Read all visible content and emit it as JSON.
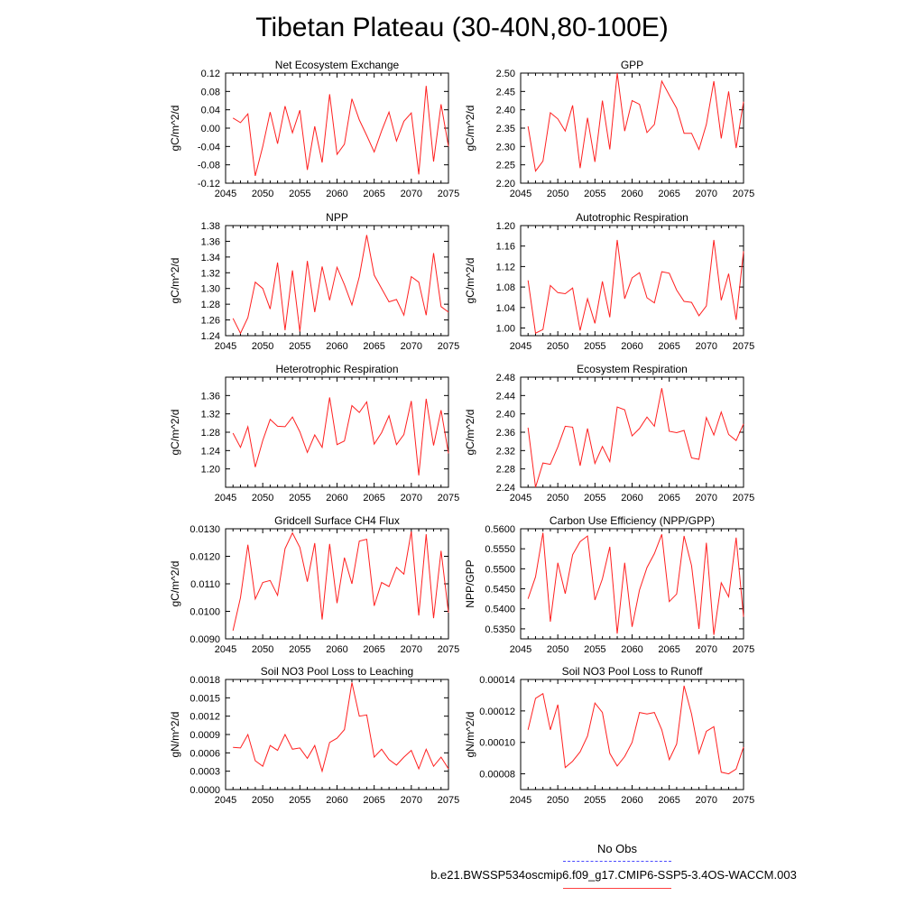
{
  "title": "Tibetan Plateau (30-40N,80-100E)",
  "legend": {
    "obs_label": "No Obs",
    "run_label": "b.e21.BWSSP534oscmip6.f09_g17.CMIP6-SSP5-3.4OS-WACCM.003",
    "obs_color": "#4a4aff",
    "run_color": "#ff2020"
  },
  "chart_data": [
    {
      "type": "line",
      "title": "Net Ecosystem Exchange",
      "ylabel": "gC/m^2/d",
      "xlim": [
        2045,
        2075
      ],
      "xticks": [
        "2045",
        "2050",
        "2055",
        "2060",
        "2065",
        "2070",
        "2075"
      ],
      "ylim": [
        -0.12,
        0.12
      ],
      "yticks": [
        "0.12",
        "0.08",
        "0.04",
        "0.00",
        "-0.04",
        "-0.08",
        "-0.12"
      ],
      "x": [
        2046,
        2047,
        2048,
        2049,
        2050,
        2051,
        2052,
        2053,
        2054,
        2055,
        2056,
        2057,
        2058,
        2059,
        2060,
        2061,
        2062,
        2063,
        2064,
        2065,
        2066,
        2067,
        2068,
        2069,
        2070,
        2071,
        2072,
        2073,
        2074,
        2075
      ],
      "series": [
        {
          "name": "b.e21.BWSSP534oscmip6.f09_g17.CMIP6-SSP5-3.4OS-WACCM.003",
          "values": [
            0.022,
            0.012,
            0.031,
            -0.104,
            -0.04,
            0.035,
            -0.034,
            0.048,
            -0.01,
            0.039,
            -0.091,
            0.004,
            -0.075,
            0.074,
            -0.057,
            -0.035,
            0.064,
            0.018,
            -0.016,
            -0.052,
            -0.006,
            0.035,
            -0.028,
            0.015,
            0.033,
            -0.101,
            0.092,
            -0.073,
            0.052,
            -0.04
          ]
        }
      ]
    },
    {
      "type": "line",
      "title": "GPP",
      "ylabel": "gC/m^2/d",
      "xlim": [
        2045,
        2075
      ],
      "xticks": [
        "2045",
        "2050",
        "2055",
        "2060",
        "2065",
        "2070",
        "2075"
      ],
      "ylim": [
        2.2,
        2.5
      ],
      "yticks": [
        "2.50",
        "2.45",
        "2.40",
        "2.35",
        "2.30",
        "2.25",
        "2.20"
      ],
      "x": [
        2046,
        2047,
        2048,
        2049,
        2050,
        2051,
        2052,
        2053,
        2054,
        2055,
        2056,
        2057,
        2058,
        2059,
        2060,
        2061,
        2062,
        2063,
        2064,
        2065,
        2066,
        2067,
        2068,
        2069,
        2070,
        2071,
        2072,
        2073,
        2074,
        2075
      ],
      "series": [
        {
          "name": "b.e21.BWSSP534oscmip6.f09_g17.CMIP6-SSP5-3.4OS-WACCM.003",
          "values": [
            2.355,
            2.233,
            2.26,
            2.392,
            2.375,
            2.342,
            2.412,
            2.241,
            2.378,
            2.258,
            2.425,
            2.292,
            2.5,
            2.342,
            2.425,
            2.415,
            2.338,
            2.36,
            2.478,
            2.44,
            2.404,
            2.336,
            2.336,
            2.292,
            2.36,
            2.478,
            2.322,
            2.45,
            2.296,
            2.422
          ]
        }
      ]
    },
    {
      "type": "line",
      "title": "NPP",
      "ylabel": "gC/m^2/d",
      "xlim": [
        2045,
        2075
      ],
      "xticks": [
        "2045",
        "2050",
        "2055",
        "2060",
        "2065",
        "2070",
        "2075"
      ],
      "ylim": [
        1.24,
        1.38
      ],
      "yticks": [
        "1.38",
        "1.36",
        "1.34",
        "1.32",
        "1.30",
        "1.28",
        "1.26",
        "1.24"
      ],
      "x": [
        2046,
        2047,
        2048,
        2049,
        2050,
        2051,
        2052,
        2053,
        2054,
        2055,
        2056,
        2057,
        2058,
        2059,
        2060,
        2061,
        2062,
        2063,
        2064,
        2065,
        2066,
        2067,
        2068,
        2069,
        2070,
        2071,
        2072,
        2073,
        2074,
        2075
      ],
      "series": [
        {
          "name": "b.e21.BWSSP534oscmip6.f09_g17.CMIP6-SSP5-3.4OS-WACCM.003",
          "values": [
            1.262,
            1.243,
            1.263,
            1.308,
            1.3,
            1.274,
            1.333,
            1.247,
            1.323,
            1.245,
            1.335,
            1.27,
            1.328,
            1.285,
            1.327,
            1.305,
            1.279,
            1.315,
            1.368,
            1.317,
            1.3,
            1.283,
            1.286,
            1.266,
            1.315,
            1.308,
            1.266,
            1.345,
            1.277,
            1.27
          ]
        }
      ]
    },
    {
      "type": "line",
      "title": "Autotrophic Respiration",
      "ylabel": "gC/m^2/d",
      "xlim": [
        2045,
        2075
      ],
      "xticks": [
        "2045",
        "2050",
        "2055",
        "2060",
        "2065",
        "2070",
        "2075"
      ],
      "ylim": [
        0.985,
        1.2
      ],
      "yticks": [
        "1.20",
        "1.16",
        "1.12",
        "1.08",
        "1.04",
        "1.00"
      ],
      "x": [
        2046,
        2047,
        2048,
        2049,
        2050,
        2051,
        2052,
        2053,
        2054,
        2055,
        2056,
        2057,
        2058,
        2059,
        2060,
        2061,
        2062,
        2063,
        2064,
        2065,
        2066,
        2067,
        2068,
        2069,
        2070,
        2071,
        2072,
        2073,
        2074,
        2075
      ],
      "series": [
        {
          "name": "b.e21.BWSSP534oscmip6.f09_g17.CMIP6-SSP5-3.4OS-WACCM.003",
          "values": [
            1.093,
            0.99,
            0.997,
            1.083,
            1.069,
            1.067,
            1.078,
            0.995,
            1.057,
            1.009,
            1.091,
            1.021,
            1.172,
            1.057,
            1.098,
            1.108,
            1.059,
            1.049,
            1.11,
            1.107,
            1.074,
            1.052,
            1.05,
            1.024,
            1.043,
            1.172,
            1.054,
            1.106,
            1.016,
            1.15
          ]
        }
      ]
    },
    {
      "type": "line",
      "title": "Heterotrophic Respiration",
      "ylabel": "gC/m^2/d",
      "xlim": [
        2045,
        2075
      ],
      "xticks": [
        "2045",
        "2050",
        "2055",
        "2060",
        "2065",
        "2070",
        "2075"
      ],
      "ylim": [
        1.16,
        1.4
      ],
      "yticks": [
        "1.36",
        "1.32",
        "1.28",
        "1.24",
        "1.20"
      ],
      "x": [
        2046,
        2047,
        2048,
        2049,
        2050,
        2051,
        2052,
        2053,
        2054,
        2055,
        2056,
        2057,
        2058,
        2059,
        2060,
        2061,
        2062,
        2063,
        2064,
        2065,
        2066,
        2067,
        2068,
        2069,
        2070,
        2071,
        2072,
        2073,
        2074,
        2075
      ],
      "series": [
        {
          "name": "b.e21.BWSSP534oscmip6.f09_g17.CMIP6-SSP5-3.4OS-WACCM.003",
          "values": [
            1.278,
            1.247,
            1.292,
            1.204,
            1.262,
            1.308,
            1.293,
            1.292,
            1.313,
            1.281,
            1.236,
            1.274,
            1.247,
            1.356,
            1.253,
            1.261,
            1.338,
            1.323,
            1.346,
            1.254,
            1.279,
            1.316,
            1.253,
            1.275,
            1.348,
            1.186,
            1.353,
            1.251,
            1.328,
            1.234
          ]
        }
      ]
    },
    {
      "type": "line",
      "title": "Ecosystem Respiration",
      "ylabel": "gC/m^2/d",
      "xlim": [
        2045,
        2075
      ],
      "xticks": [
        "2045",
        "2050",
        "2055",
        "2060",
        "2065",
        "2070",
        "2075"
      ],
      "ylim": [
        2.24,
        2.48
      ],
      "yticks": [
        "2.48",
        "2.44",
        "2.40",
        "2.36",
        "2.32",
        "2.28",
        "2.24"
      ],
      "x": [
        2046,
        2047,
        2048,
        2049,
        2050,
        2051,
        2052,
        2053,
        2054,
        2055,
        2056,
        2057,
        2058,
        2059,
        2060,
        2061,
        2062,
        2063,
        2064,
        2065,
        2066,
        2067,
        2068,
        2069,
        2070,
        2071,
        2072,
        2073,
        2074,
        2075
      ],
      "series": [
        {
          "name": "b.e21.BWSSP534oscmip6.f09_g17.CMIP6-SSP5-3.4OS-WACCM.003",
          "values": [
            2.37,
            2.24,
            2.293,
            2.29,
            2.328,
            2.373,
            2.371,
            2.287,
            2.368,
            2.292,
            2.329,
            2.296,
            2.415,
            2.409,
            2.352,
            2.368,
            2.393,
            2.373,
            2.456,
            2.362,
            2.359,
            2.364,
            2.304,
            2.301,
            2.392,
            2.354,
            2.404,
            2.355,
            2.342,
            2.378
          ]
        }
      ]
    },
    {
      "type": "line",
      "title": "Gridcell Surface CH4 Flux",
      "ylabel": "gC/m^2/d",
      "xlim": [
        2045,
        2075
      ],
      "xticks": [
        "2045",
        "2050",
        "2055",
        "2060",
        "2065",
        "2070",
        "2075"
      ],
      "ylim": [
        0.009,
        0.013
      ],
      "yticks": [
        "0.0130",
        "0.0120",
        "0.0110",
        "0.0100",
        "0.0090"
      ],
      "x": [
        2046,
        2047,
        2048,
        2049,
        2050,
        2051,
        2052,
        2053,
        2054,
        2055,
        2056,
        2057,
        2058,
        2059,
        2060,
        2061,
        2062,
        2063,
        2064,
        2065,
        2066,
        2067,
        2068,
        2069,
        2070,
        2071,
        2072,
        2073,
        2074,
        2075
      ],
      "series": [
        {
          "name": "b.e21.BWSSP534oscmip6.f09_g17.CMIP6-SSP5-3.4OS-WACCM.003",
          "values": [
            0.0093,
            0.0105,
            0.01242,
            0.01045,
            0.01105,
            0.01112,
            0.01058,
            0.01228,
            0.01285,
            0.01232,
            0.01108,
            0.01248,
            0.0097,
            0.01245,
            0.0103,
            0.01195,
            0.011,
            0.01255,
            0.01262,
            0.0102,
            0.01105,
            0.0109,
            0.0116,
            0.01135,
            0.0129,
            0.00985,
            0.0128,
            0.00975,
            0.0122,
            0.00995
          ]
        }
      ]
    },
    {
      "type": "line",
      "title": "Carbon Use Efficiency (NPP/GPP)",
      "ylabel": "NPP/GPP",
      "xlim": [
        2045,
        2075
      ],
      "xticks": [
        "2045",
        "2050",
        "2055",
        "2060",
        "2065",
        "2070",
        "2075"
      ],
      "ylim": [
        0.5325,
        0.56
      ],
      "yticks": [
        "0.5600",
        "0.5550",
        "0.5500",
        "0.5450",
        "0.5400",
        "0.5350"
      ],
      "x": [
        2046,
        2047,
        2048,
        2049,
        2050,
        2051,
        2052,
        2053,
        2054,
        2055,
        2056,
        2057,
        2058,
        2059,
        2060,
        2061,
        2062,
        2063,
        2064,
        2065,
        2066,
        2067,
        2068,
        2069,
        2070,
        2071,
        2072,
        2073,
        2074,
        2075
      ],
      "series": [
        {
          "name": "b.e21.BWSSP534oscmip6.f09_g17.CMIP6-SSP5-3.4OS-WACCM.003",
          "values": [
            0.5425,
            0.548,
            0.559,
            0.5368,
            0.5515,
            0.5438,
            0.5535,
            0.5568,
            0.5582,
            0.5422,
            0.5475,
            0.5555,
            0.5338,
            0.5515,
            0.5355,
            0.5447,
            0.5503,
            0.5538,
            0.5586,
            0.5418,
            0.5437,
            0.5582,
            0.5508,
            0.535,
            0.5565,
            0.5335,
            0.5465,
            0.543,
            0.5578,
            0.538
          ]
        }
      ]
    },
    {
      "type": "line",
      "title": "Soil NO3 Pool Loss to Leaching",
      "ylabel": "gN/m^2/d",
      "xlim": [
        2045,
        2075
      ],
      "xticks": [
        "2045",
        "2050",
        "2055",
        "2060",
        "2065",
        "2070",
        "2075"
      ],
      "ylim": [
        0.0,
        0.0018
      ],
      "yticks": [
        "0.0018",
        "0.0015",
        "0.0012",
        "0.0009",
        "0.0006",
        "0.0003",
        "0.0000"
      ],
      "x": [
        2046,
        2047,
        2048,
        2049,
        2050,
        2051,
        2052,
        2053,
        2054,
        2055,
        2056,
        2057,
        2058,
        2059,
        2060,
        2061,
        2062,
        2063,
        2064,
        2065,
        2066,
        2067,
        2068,
        2069,
        2070,
        2071,
        2072,
        2073,
        2074,
        2075
      ],
      "series": [
        {
          "name": "b.e21.BWSSP534oscmip6.f09_g17.CMIP6-SSP5-3.4OS-WACCM.003",
          "values": [
            0.00069,
            0.00068,
            0.0009,
            0.00047,
            0.00038,
            0.00072,
            0.00064,
            0.0009,
            0.00066,
            0.00068,
            0.00051,
            0.00072,
            0.0003,
            0.00077,
            0.00084,
            0.00098,
            0.00175,
            0.0012,
            0.00122,
            0.00053,
            0.00066,
            0.00049,
            0.0004,
            0.00053,
            0.00064,
            0.00034,
            0.00066,
            0.00038,
            0.00053,
            0.00034
          ]
        }
      ]
    },
    {
      "type": "line",
      "title": "Soil NO3 Pool Loss to Runoff",
      "ylabel": "gN/m^2/d",
      "xlim": [
        2045,
        2075
      ],
      "xticks": [
        "2045",
        "2050",
        "2055",
        "2060",
        "2065",
        "2070",
        "2075"
      ],
      "ylim": [
        7e-05,
        0.00014
      ],
      "yticks": [
        "0.00014",
        "0.00012",
        "0.00010",
        "0.00008"
      ],
      "x": [
        2046,
        2047,
        2048,
        2049,
        2050,
        2051,
        2052,
        2053,
        2054,
        2055,
        2056,
        2057,
        2058,
        2059,
        2060,
        2061,
        2062,
        2063,
        2064,
        2065,
        2066,
        2067,
        2068,
        2069,
        2070,
        2071,
        2072,
        2073,
        2074,
        2075
      ],
      "series": [
        {
          "name": "b.e21.BWSSP534oscmip6.f09_g17.CMIP6-SSP5-3.4OS-WACCM.003",
          "values": [
            0.000108,
            0.000128,
            0.000131,
            0.000108,
            0.000124,
            8.4e-05,
            8.8e-05,
            9.4e-05,
            0.000104,
            0.000125,
            0.000119,
            9.3e-05,
            8.5e-05,
            9.1e-05,
            0.0001,
            0.000119,
            0.000118,
            0.000119,
            0.000108,
            8.9e-05,
            9.9e-05,
            0.000136,
            0.000118,
            9.3e-05,
            0.000107,
            0.00011,
            8.1e-05,
            8e-05,
            8.3e-05,
            9.7e-05
          ]
        }
      ]
    }
  ]
}
